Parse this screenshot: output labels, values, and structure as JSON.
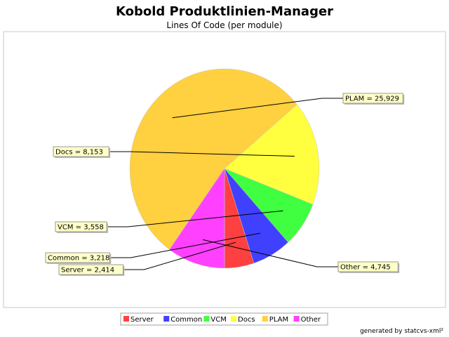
{
  "chart_data": {
    "type": "pie",
    "title": "Kobold Produktlinien-Manager",
    "subtitle": "Lines Of Code (per module)",
    "slices": [
      {
        "name": "Server",
        "value": 2414,
        "label": "Server = 2,414",
        "color": "#ff4040"
      },
      {
        "name": "Common",
        "value": 3218,
        "label": "Common = 3,218",
        "color": "#4040ff"
      },
      {
        "name": "VCM",
        "value": 3558,
        "label": "VCM = 3,558",
        "color": "#40ff40"
      },
      {
        "name": "Docs",
        "value": 8153,
        "label": "Docs = 8,153",
        "color": "#ffff40"
      },
      {
        "name": "PLAM",
        "value": 25929,
        "label": "PLAM = 25,929",
        "color": "#ffd040"
      },
      {
        "name": "Other",
        "value": 4745,
        "label": "Other = 4,745",
        "color": "#ff40ff"
      }
    ],
    "legend_position": "bottom",
    "footer": "generated by statcvs-xml²"
  }
}
